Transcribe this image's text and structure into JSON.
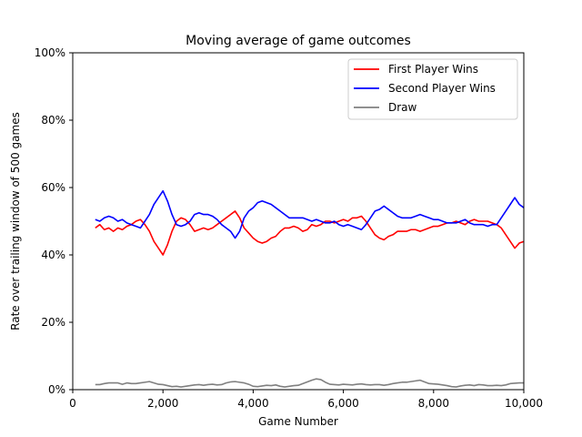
{
  "chart_data": {
    "type": "line",
    "title": "Moving average of game outcomes",
    "xlabel": "Game Number",
    "ylabel": "Rate over trailing window of 500 games",
    "xlim": [
      0,
      10000
    ],
    "ylim": [
      0,
      100
    ],
    "x_ticks": [
      {
        "value": 0,
        "label": "0"
      },
      {
        "value": 2000,
        "label": "2,000"
      },
      {
        "value": 4000,
        "label": "4,000"
      },
      {
        "value": 6000,
        "label": "6,000"
      },
      {
        "value": 8000,
        "label": "8,000"
      },
      {
        "value": 10000,
        "label": "10,000"
      }
    ],
    "y_ticks": [
      {
        "value": 0,
        "label": "0%"
      },
      {
        "value": 20,
        "label": "20%"
      },
      {
        "value": 40,
        "label": "40%"
      },
      {
        "value": 60,
        "label": "60%"
      },
      {
        "value": 80,
        "label": "80%"
      },
      {
        "value": 100,
        "label": "100%"
      }
    ],
    "grid": false,
    "legend_position": "top-right",
    "series": [
      {
        "name": "First Player Wins",
        "color": "#ff0000",
        "points": [
          [
            500,
            48
          ],
          [
            600,
            49
          ],
          [
            700,
            47.5
          ],
          [
            800,
            48
          ],
          [
            900,
            47
          ],
          [
            1000,
            48
          ],
          [
            1100,
            47.5
          ],
          [
            1200,
            48.5
          ],
          [
            1300,
            49
          ],
          [
            1400,
            50
          ],
          [
            1500,
            50.5
          ],
          [
            1600,
            49
          ],
          [
            1700,
            47
          ],
          [
            1800,
            44
          ],
          [
            1900,
            42
          ],
          [
            2000,
            40
          ],
          [
            2100,
            43
          ],
          [
            2200,
            47
          ],
          [
            2300,
            50
          ],
          [
            2400,
            51
          ],
          [
            2500,
            50.5
          ],
          [
            2600,
            49
          ],
          [
            2700,
            47
          ],
          [
            2800,
            47.5
          ],
          [
            2900,
            48
          ],
          [
            3000,
            47.5
          ],
          [
            3100,
            48
          ],
          [
            3200,
            49
          ],
          [
            3300,
            50
          ],
          [
            3400,
            51
          ],
          [
            3500,
            52
          ],
          [
            3600,
            53
          ],
          [
            3700,
            51
          ],
          [
            3800,
            48
          ],
          [
            3900,
            46.5
          ],
          [
            4000,
            45
          ],
          [
            4100,
            44
          ],
          [
            4200,
            43.5
          ],
          [
            4300,
            44
          ],
          [
            4400,
            45
          ],
          [
            4500,
            45.5
          ],
          [
            4600,
            47
          ],
          [
            4700,
            48
          ],
          [
            4800,
            48
          ],
          [
            4900,
            48.5
          ],
          [
            5000,
            48
          ],
          [
            5100,
            47
          ],
          [
            5200,
            47.5
          ],
          [
            5300,
            49
          ],
          [
            5400,
            48.5
          ],
          [
            5500,
            49
          ],
          [
            5600,
            50
          ],
          [
            5700,
            50
          ],
          [
            5800,
            49.5
          ],
          [
            5900,
            50
          ],
          [
            6000,
            50.5
          ],
          [
            6100,
            50
          ],
          [
            6200,
            51
          ],
          [
            6300,
            51
          ],
          [
            6400,
            51.5
          ],
          [
            6500,
            50
          ],
          [
            6600,
            48
          ],
          [
            6700,
            46
          ],
          [
            6800,
            45
          ],
          [
            6900,
            44.5
          ],
          [
            7000,
            45.5
          ],
          [
            7100,
            46
          ],
          [
            7200,
            47
          ],
          [
            7300,
            47
          ],
          [
            7400,
            47
          ],
          [
            7500,
            47.5
          ],
          [
            7600,
            47.5
          ],
          [
            7700,
            47
          ],
          [
            7800,
            47.5
          ],
          [
            7900,
            48
          ],
          [
            8000,
            48.5
          ],
          [
            8100,
            48.5
          ],
          [
            8200,
            49
          ],
          [
            8300,
            49.5
          ],
          [
            8400,
            49.5
          ],
          [
            8500,
            50
          ],
          [
            8600,
            49.5
          ],
          [
            8700,
            49
          ],
          [
            8800,
            50
          ],
          [
            8900,
            50.5
          ],
          [
            9000,
            50
          ],
          [
            9100,
            50
          ],
          [
            9200,
            50
          ],
          [
            9300,
            49.5
          ],
          [
            9400,
            49
          ],
          [
            9500,
            48
          ],
          [
            9600,
            46
          ],
          [
            9700,
            44
          ],
          [
            9800,
            42
          ],
          [
            9900,
            43.5
          ],
          [
            10000,
            44
          ]
        ]
      },
      {
        "name": "Second Player Wins",
        "color": "#0000ff",
        "points": [
          [
            500,
            50.5
          ],
          [
            600,
            50
          ],
          [
            700,
            51
          ],
          [
            800,
            51.5
          ],
          [
            900,
            51
          ],
          [
            1000,
            50
          ],
          [
            1100,
            50.5
          ],
          [
            1200,
            49.5
          ],
          [
            1300,
            49
          ],
          [
            1400,
            48.5
          ],
          [
            1500,
            48
          ],
          [
            1600,
            50
          ],
          [
            1700,
            52
          ],
          [
            1800,
            55
          ],
          [
            1900,
            57
          ],
          [
            2000,
            59
          ],
          [
            2100,
            56
          ],
          [
            2200,
            52
          ],
          [
            2300,
            49
          ],
          [
            2400,
            48.5
          ],
          [
            2500,
            49
          ],
          [
            2600,
            50
          ],
          [
            2700,
            52
          ],
          [
            2800,
            52.5
          ],
          [
            2900,
            52
          ],
          [
            3000,
            52
          ],
          [
            3100,
            51.5
          ],
          [
            3200,
            50.5
          ],
          [
            3300,
            49
          ],
          [
            3400,
            48
          ],
          [
            3500,
            47
          ],
          [
            3600,
            45
          ],
          [
            3700,
            47
          ],
          [
            3800,
            51
          ],
          [
            3900,
            53
          ],
          [
            4000,
            54
          ],
          [
            4100,
            55.5
          ],
          [
            4200,
            56
          ],
          [
            4300,
            55.5
          ],
          [
            4400,
            55
          ],
          [
            4500,
            54
          ],
          [
            4600,
            53
          ],
          [
            4700,
            52
          ],
          [
            4800,
            51
          ],
          [
            4900,
            51
          ],
          [
            5000,
            51
          ],
          [
            5100,
            51
          ],
          [
            5200,
            50.5
          ],
          [
            5300,
            50
          ],
          [
            5400,
            50.5
          ],
          [
            5500,
            50
          ],
          [
            5600,
            49.5
          ],
          [
            5700,
            49.5
          ],
          [
            5800,
            50
          ],
          [
            5900,
            49
          ],
          [
            6000,
            48.5
          ],
          [
            6100,
            49
          ],
          [
            6200,
            48.5
          ],
          [
            6300,
            48
          ],
          [
            6400,
            47.5
          ],
          [
            6500,
            49
          ],
          [
            6600,
            51
          ],
          [
            6700,
            53
          ],
          [
            6800,
            53.5
          ],
          [
            6900,
            54.5
          ],
          [
            7000,
            53.5
          ],
          [
            7100,
            52.5
          ],
          [
            7200,
            51.5
          ],
          [
            7300,
            51
          ],
          [
            7400,
            51
          ],
          [
            7500,
            51
          ],
          [
            7600,
            51.5
          ],
          [
            7700,
            52
          ],
          [
            7800,
            51.5
          ],
          [
            7900,
            51
          ],
          [
            8000,
            50.5
          ],
          [
            8100,
            50.5
          ],
          [
            8200,
            50
          ],
          [
            8300,
            49.5
          ],
          [
            8400,
            49.5
          ],
          [
            8500,
            49.5
          ],
          [
            8600,
            50
          ],
          [
            8700,
            50.5
          ],
          [
            8800,
            49.5
          ],
          [
            8900,
            49
          ],
          [
            9000,
            49
          ],
          [
            9100,
            49
          ],
          [
            9200,
            48.5
          ],
          [
            9300,
            49
          ],
          [
            9400,
            49
          ],
          [
            9500,
            51
          ],
          [
            9600,
            53
          ],
          [
            9700,
            55
          ],
          [
            9800,
            57
          ],
          [
            9900,
            55
          ],
          [
            10000,
            54
          ]
        ]
      },
      {
        "name": "Draw",
        "color": "#808080",
        "points": [
          [
            500,
            1.5
          ],
          [
            600,
            1.5
          ],
          [
            700,
            1.8
          ],
          [
            800,
            2
          ],
          [
            900,
            2
          ],
          [
            1000,
            2
          ],
          [
            1100,
            1.6
          ],
          [
            1200,
            2
          ],
          [
            1300,
            1.8
          ],
          [
            1400,
            1.8
          ],
          [
            1500,
            2
          ],
          [
            1600,
            2.2
          ],
          [
            1700,
            2.4
          ],
          [
            1800,
            2
          ],
          [
            1900,
            1.6
          ],
          [
            2000,
            1.5
          ],
          [
            2100,
            1.2
          ],
          [
            2200,
            0.9
          ],
          [
            2300,
            1
          ],
          [
            2400,
            0.8
          ],
          [
            2500,
            1
          ],
          [
            2600,
            1.2
          ],
          [
            2700,
            1.4
          ],
          [
            2800,
            1.5
          ],
          [
            2900,
            1.3
          ],
          [
            3000,
            1.5
          ],
          [
            3100,
            1.6
          ],
          [
            3200,
            1.4
          ],
          [
            3300,
            1.5
          ],
          [
            3400,
            2
          ],
          [
            3500,
            2.3
          ],
          [
            3600,
            2.4
          ],
          [
            3700,
            2.2
          ],
          [
            3800,
            2
          ],
          [
            3900,
            1.6
          ],
          [
            4000,
            1
          ],
          [
            4100,
            0.9
          ],
          [
            4200,
            1.1
          ],
          [
            4300,
            1.3
          ],
          [
            4400,
            1.2
          ],
          [
            4500,
            1.4
          ],
          [
            4600,
            1
          ],
          [
            4700,
            0.8
          ],
          [
            4800,
            1
          ],
          [
            4900,
            1.2
          ],
          [
            5000,
            1.3
          ],
          [
            5100,
            1.8
          ],
          [
            5200,
            2.3
          ],
          [
            5300,
            2.8
          ],
          [
            5400,
            3.2
          ],
          [
            5500,
            3
          ],
          [
            5600,
            2.2
          ],
          [
            5700,
            1.6
          ],
          [
            5800,
            1.5
          ],
          [
            5900,
            1.4
          ],
          [
            6000,
            1.6
          ],
          [
            6100,
            1.5
          ],
          [
            6200,
            1.4
          ],
          [
            6300,
            1.6
          ],
          [
            6400,
            1.7
          ],
          [
            6500,
            1.5
          ],
          [
            6600,
            1.4
          ],
          [
            6700,
            1.5
          ],
          [
            6800,
            1.5
          ],
          [
            6900,
            1.3
          ],
          [
            7000,
            1.5
          ],
          [
            7100,
            1.8
          ],
          [
            7200,
            2
          ],
          [
            7300,
            2.2
          ],
          [
            7400,
            2.2
          ],
          [
            7500,
            2.4
          ],
          [
            7600,
            2.6
          ],
          [
            7700,
            2.8
          ],
          [
            7800,
            2.3
          ],
          [
            7900,
            1.8
          ],
          [
            8000,
            1.7
          ],
          [
            8100,
            1.6
          ],
          [
            8200,
            1.4
          ],
          [
            8300,
            1.2
          ],
          [
            8400,
            0.9
          ],
          [
            8500,
            0.8
          ],
          [
            8600,
            1.1
          ],
          [
            8700,
            1.3
          ],
          [
            8800,
            1.4
          ],
          [
            8900,
            1.2
          ],
          [
            9000,
            1.5
          ],
          [
            9100,
            1.4
          ],
          [
            9200,
            1.2
          ],
          [
            9300,
            1.2
          ],
          [
            9400,
            1.3
          ],
          [
            9500,
            1.2
          ],
          [
            9600,
            1.4
          ],
          [
            9700,
            1.8
          ],
          [
            9800,
            1.9
          ],
          [
            9900,
            2
          ],
          [
            10000,
            2
          ]
        ]
      }
    ]
  }
}
